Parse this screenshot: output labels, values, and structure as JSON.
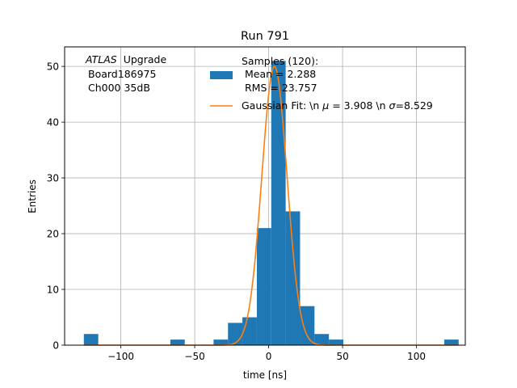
{
  "chart_data": {
    "type": "bar",
    "title": "Run 791",
    "xlabel": "time [ns]",
    "ylabel": "Entries",
    "xlim": [
      -138,
      133
    ],
    "ylim": [
      0,
      53.5
    ],
    "grid": true,
    "xticks": [
      -100,
      -50,
      0,
      50,
      100
    ],
    "xtick_labels": [
      "−100",
      "−50",
      "0",
      "50",
      "100"
    ],
    "yticks": [
      0,
      10,
      20,
      30,
      40,
      50
    ],
    "ytick_labels": [
      "0",
      "10",
      "20",
      "30",
      "40",
      "50"
    ],
    "annotation": {
      "atlas": "ATLAS",
      "upgrade": "Upgrade",
      "board": "Board186975",
      "channel": "Ch000 35dB"
    },
    "legend": {
      "placement": "top-center",
      "samples_line1": "Samples (120):",
      "samples_line2": "Mean = 2.288",
      "samples_line3": "RMS = 23.757",
      "fit_prefix": "Gaussian Fit: \\n ",
      "fit_mu_symbol": "μ",
      "fit_mid": " = 3.908 \\n ",
      "fit_sigma_symbol": "σ",
      "fit_end": "=8.529"
    },
    "histogram": {
      "bin_edges": [
        -125.0,
        -115.25,
        -105.5,
        -95.75,
        -86.0,
        -76.25,
        -66.5,
        -56.75,
        -47.0,
        -37.25,
        -27.5,
        -17.75,
        -8.0,
        1.75,
        11.5,
        21.25,
        31.0,
        40.75,
        50.5,
        60.25,
        70.0,
        79.75,
        89.5,
        99.25,
        109.0,
        118.75
      ],
      "counts": [
        2,
        0,
        0,
        0,
        0,
        0,
        1,
        0,
        0,
        1,
        4,
        5,
        21,
        51,
        24,
        7,
        2,
        1,
        0,
        0,
        0,
        0,
        0,
        0,
        0,
        1
      ],
      "color": "#1f77b4"
    },
    "fit": {
      "type": "gaussian",
      "mu": 3.908,
      "sigma": 8.529,
      "amplitude": 50,
      "color": "#ff7f0e"
    }
  }
}
